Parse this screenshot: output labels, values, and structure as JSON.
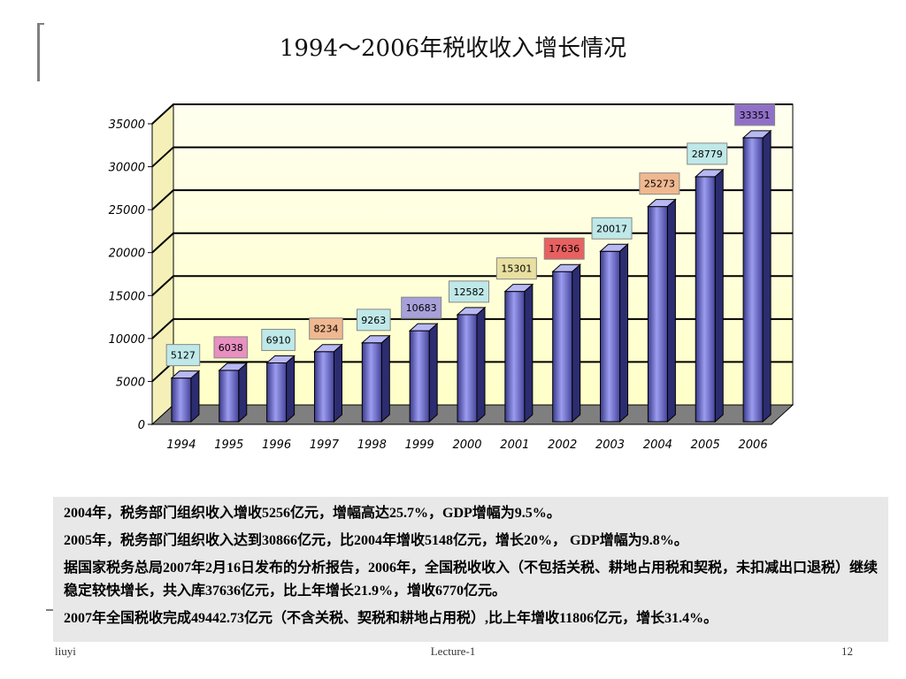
{
  "slide": {
    "title": "1994～2006年税收收入增长情况",
    "paragraphs": [
      "2004年，税务部门组织收入增收5256亿元，增幅高达25.7%，GDP增幅为9.5%。",
      "2005年，税务部门组织收入达到30866亿元，比2004年增收5148亿元，增长20%， GDP增幅为9.8%。",
      "据国家税务总局2007年2月16日发布的分析报告，2006年，全国税收收入（不包括关税、耕地占用税和契税，未扣减出口退税）继续稳定较快增长，共入库37636亿元，比上年增长21.9%，增收6770亿元。",
      "2007年全国税收完成49442.73亿元（不含关税、契税和耕地占用税）,比上年增收11806亿元，增长31.4%。"
    ],
    "footer": {
      "left": "liuyi",
      "center": "Lecture-1",
      "right": "12"
    }
  },
  "chart_data": {
    "type": "bar",
    "title": "1994～2006年税收收入增长情况",
    "categories": [
      "1994",
      "1995",
      "1996",
      "1997",
      "1998",
      "1999",
      "2000",
      "2001",
      "2002",
      "2003",
      "2004",
      "2005",
      "2006"
    ],
    "values": [
      5127,
      6038,
      6910,
      8234,
      9263,
      10683,
      12582,
      15301,
      17636,
      20017,
      25273,
      28779,
      33351
    ],
    "ylim": [
      0,
      35000
    ],
    "yticks": [
      0,
      5000,
      10000,
      15000,
      20000,
      25000,
      30000,
      35000
    ],
    "grid": true,
    "colors": {
      "bar": "#7b7bd6",
      "background": "#ffffcc",
      "floor": "#7f7f7f",
      "label_boxes": [
        "#bfe8e8",
        "#e890c0",
        "#bfe8e8",
        "#f0b890",
        "#bfe8e8",
        "#a8a0d8",
        "#bfe8e8",
        "#e8e0a0",
        "#e86060",
        "#bfe8e8",
        "#f0b890",
        "#bfe8e8",
        "#9070c8"
      ]
    }
  }
}
